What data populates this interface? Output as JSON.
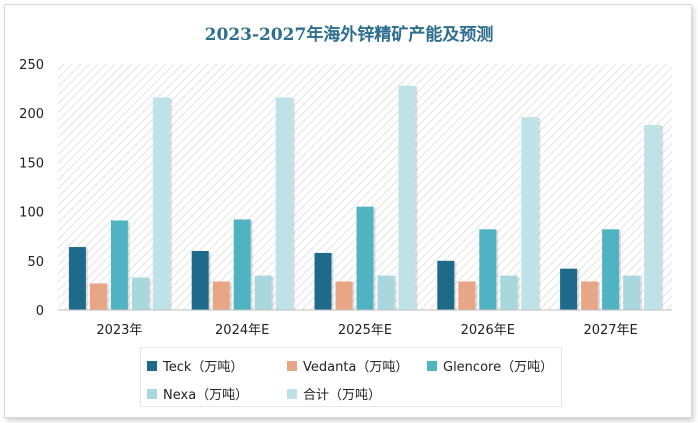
{
  "chart_data": {
    "type": "bar",
    "title": "2023-2027年海外锌精矿产能及预测",
    "categories": [
      "2023年",
      "2024年E",
      "2025年E",
      "2026年E",
      "2027年E"
    ],
    "ylim": [
      0,
      250
    ],
    "yticks": [
      0,
      50,
      100,
      150,
      200,
      250
    ],
    "grid": false,
    "legend_placement": "bottom",
    "series": [
      {
        "name": "Teck（万吨）",
        "color": "#1f6a8a",
        "values": [
          64,
          60,
          58,
          50,
          42
        ]
      },
      {
        "name": "Vedanta（万吨）",
        "color": "#e9a687",
        "values": [
          27,
          29,
          29,
          29,
          29
        ]
      },
      {
        "name": "Glencore（万吨）",
        "color": "#4fb3c2",
        "values": [
          91,
          92,
          105,
          82,
          82
        ]
      },
      {
        "name": "Nexa（万吨）",
        "color": "#a8d8dd",
        "values": [
          33,
          35,
          35,
          35,
          35
        ]
      },
      {
        "name": "合计（万吨）",
        "color": "#bfe1e8",
        "values": [
          216,
          216,
          228,
          196,
          188
        ]
      }
    ]
  }
}
